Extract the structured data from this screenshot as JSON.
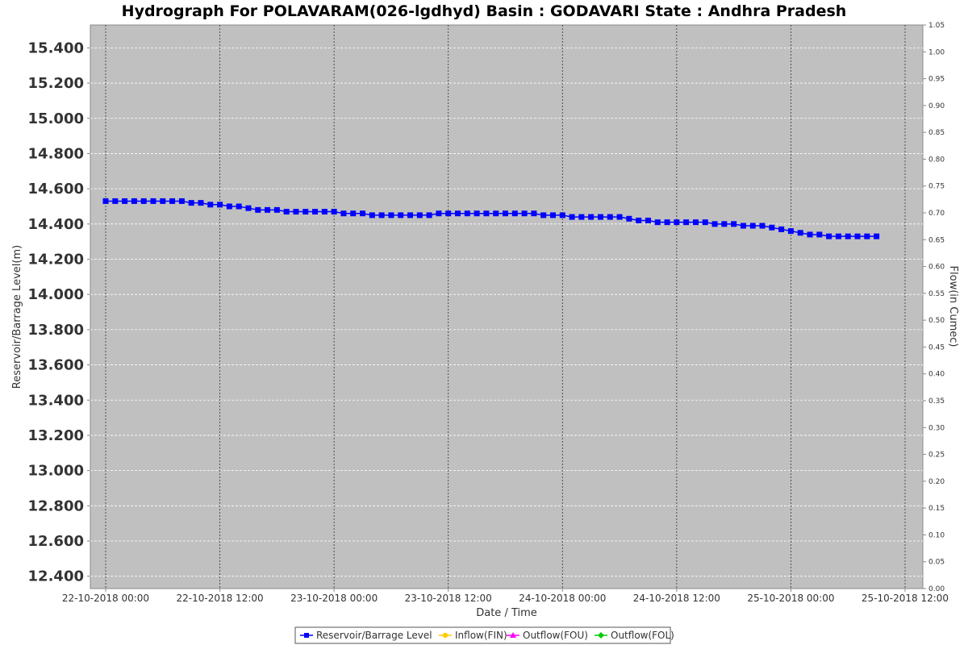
{
  "chart_data": {
    "type": "line",
    "title": "Hydrograph For POLAVARAM(026-lgdhyd) Basin : GODAVARI State : Andhra Pradesh",
    "xlabel": "Date / Time",
    "ylabel": "Reservoir/Barrage Level(m)",
    "y2label": "Flow(in Cumec)",
    "ylim": [
      12.33,
      15.53
    ],
    "y2lim": [
      0.0,
      1.05
    ],
    "yticks": [
      "12.400",
      "12.600",
      "12.800",
      "13.000",
      "13.200",
      "13.400",
      "13.600",
      "13.800",
      "14.000",
      "14.200",
      "14.400",
      "14.600",
      "14.800",
      "15.000",
      "15.200",
      "15.400"
    ],
    "y2ticks": [
      "0.00",
      "0.05",
      "0.10",
      "0.15",
      "0.20",
      "0.25",
      "0.30",
      "0.35",
      "0.40",
      "0.45",
      "0.50",
      "0.55",
      "0.60",
      "0.65",
      "0.70",
      "0.75",
      "0.80",
      "0.85",
      "0.90",
      "0.95",
      "1.00",
      "1.05"
    ],
    "xticks": [
      "22-10-2018 00:00",
      "22-10-2018 12:00",
      "23-10-2018 00:00",
      "23-10-2018 12:00",
      "24-10-2018 00:00",
      "24-10-2018 12:00",
      "25-10-2018 00:00",
      "25-10-2018 12:00"
    ],
    "x_start": "22-10-2018 00:00",
    "x_step_hours": 1,
    "grid": true,
    "legend_position": "bottom",
    "series": [
      {
        "name": "Reservoir/Barrage Level",
        "color": "#0000ff",
        "marker": "square",
        "axis": "left",
        "values": [
          14.53,
          14.53,
          14.53,
          14.53,
          14.53,
          14.53,
          14.53,
          14.53,
          14.53,
          14.52,
          14.52,
          14.51,
          14.51,
          14.5,
          14.5,
          14.49,
          14.48,
          14.48,
          14.48,
          14.47,
          14.47,
          14.47,
          14.47,
          14.47,
          14.47,
          14.46,
          14.46,
          14.46,
          14.45,
          14.45,
          14.45,
          14.45,
          14.45,
          14.45,
          14.45,
          14.46,
          14.46,
          14.46,
          14.46,
          14.46,
          14.46,
          14.46,
          14.46,
          14.46,
          14.46,
          14.46,
          14.45,
          14.45,
          14.45,
          14.44,
          14.44,
          14.44,
          14.44,
          14.44,
          14.44,
          14.43,
          14.42,
          14.42,
          14.41,
          14.41,
          14.41,
          14.41,
          14.41,
          14.41,
          14.4,
          14.4,
          14.4,
          14.39,
          14.39,
          14.39,
          14.38,
          14.37,
          14.36,
          14.35,
          14.34,
          14.34,
          14.33,
          14.33,
          14.33,
          14.33,
          14.33,
          14.33
        ]
      },
      {
        "name": "Inflow(FIN)",
        "color": "#ffcc00",
        "marker": "circle",
        "axis": "right",
        "values": []
      },
      {
        "name": "Outflow(FOU)",
        "color": "#ff00ff",
        "marker": "triangle",
        "axis": "right",
        "values": []
      },
      {
        "name": "Outflow(FOL)",
        "color": "#00cc00",
        "marker": "diamond",
        "axis": "right",
        "values": []
      }
    ]
  }
}
